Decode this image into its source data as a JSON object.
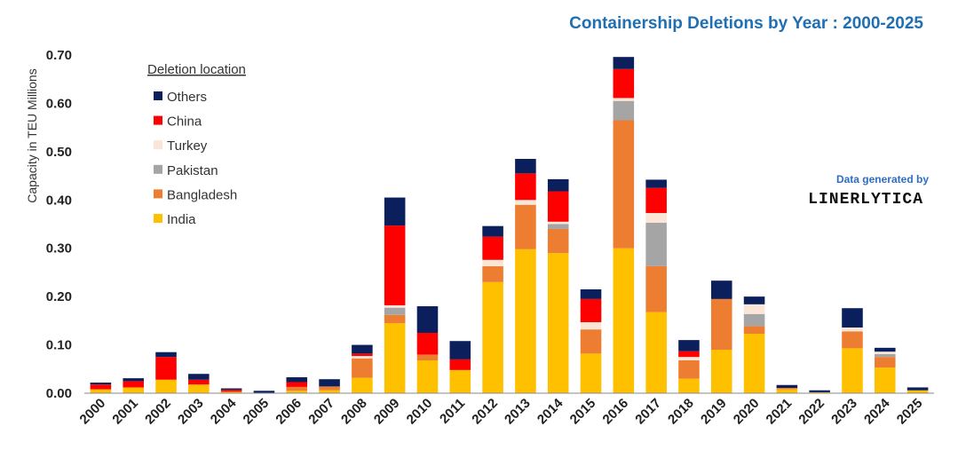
{
  "chart_data": {
    "type": "bar",
    "stacked": true,
    "title": "Containership Deletions by Year : 2000-2025",
    "ylabel": "Capacity in TEU Millions",
    "xlabel": "",
    "ylim": [
      0,
      0.7
    ],
    "yticks": [
      "0.00",
      "0.10",
      "0.20",
      "0.30",
      "0.40",
      "0.50",
      "0.60",
      "0.70"
    ],
    "grid": false,
    "legend_title": "Deletion location",
    "legend_position": "top-left",
    "categories": [
      "2000",
      "2001",
      "2002",
      "2003",
      "2004",
      "2005",
      "2006",
      "2007",
      "2008",
      "2009",
      "2010",
      "2011",
      "2012",
      "2013",
      "2014",
      "2015",
      "2016",
      "2017",
      "2018",
      "2019",
      "2020",
      "2021",
      "2022",
      "2023",
      "2024",
      "2025"
    ],
    "series": [
      {
        "name": "India",
        "color": "#FFC000",
        "values": [
          0.008,
          0.012,
          0.028,
          0.018,
          0.003,
          0.001,
          0.005,
          0.006,
          0.032,
          0.145,
          0.068,
          0.048,
          0.23,
          0.298,
          0.29,
          0.082,
          0.3,
          0.168,
          0.03,
          0.09,
          0.123,
          0.008,
          0.002,
          0.093,
          0.053,
          0.006
        ]
      },
      {
        "name": "Bangladesh",
        "color": "#ED7D31",
        "values": [
          0.0,
          0.0,
          0.0,
          0.0,
          0.0,
          0.0,
          0.008,
          0.008,
          0.04,
          0.017,
          0.012,
          0.0,
          0.033,
          0.092,
          0.05,
          0.05,
          0.265,
          0.095,
          0.038,
          0.105,
          0.016,
          0.003,
          0.0,
          0.035,
          0.022,
          0.0
        ]
      },
      {
        "name": "Pakistan",
        "color": "#A5A5A5",
        "values": [
          0.0,
          0.0,
          0.0,
          0.0,
          0.0,
          0.0,
          0.0,
          0.0,
          0.0,
          0.015,
          0.0,
          0.0,
          0.0,
          0.0,
          0.01,
          0.0,
          0.04,
          0.09,
          0.0,
          0.0,
          0.025,
          0.0,
          0.0,
          0.0,
          0.006,
          0.0
        ]
      },
      {
        "name": "Turkey",
        "color": "#FBE5D6",
        "values": [
          0.0,
          0.0,
          0.0,
          0.0,
          0.0,
          0.0,
          0.0,
          0.0,
          0.005,
          0.005,
          0.0,
          0.0,
          0.013,
          0.01,
          0.005,
          0.015,
          0.006,
          0.02,
          0.007,
          0.0,
          0.02,
          0.0,
          0.0,
          0.008,
          0.005,
          0.0
        ]
      },
      {
        "name": "China",
        "color": "#FF0000",
        "values": [
          0.01,
          0.013,
          0.047,
          0.01,
          0.004,
          0.0,
          0.01,
          0.0,
          0.005,
          0.165,
          0.045,
          0.022,
          0.048,
          0.055,
          0.063,
          0.048,
          0.06,
          0.052,
          0.012,
          0.0,
          0.0,
          0.0,
          0.0,
          0.0,
          0.0,
          0.0
        ]
      },
      {
        "name": "Others",
        "color": "#0B1F5C",
        "values": [
          0.004,
          0.006,
          0.01,
          0.012,
          0.003,
          0.004,
          0.01,
          0.015,
          0.018,
          0.058,
          0.055,
          0.038,
          0.022,
          0.03,
          0.025,
          0.02,
          0.025,
          0.017,
          0.023,
          0.038,
          0.016,
          0.006,
          0.004,
          0.04,
          0.008,
          0.006
        ]
      }
    ],
    "annotation_line1": "Data generated by",
    "annotation_line2": "LINERLYTICA"
  },
  "colors": {
    "title": "#1F6FB2",
    "annotation": "#2E6DC4",
    "brand": "#111111",
    "axis": "#888888"
  }
}
